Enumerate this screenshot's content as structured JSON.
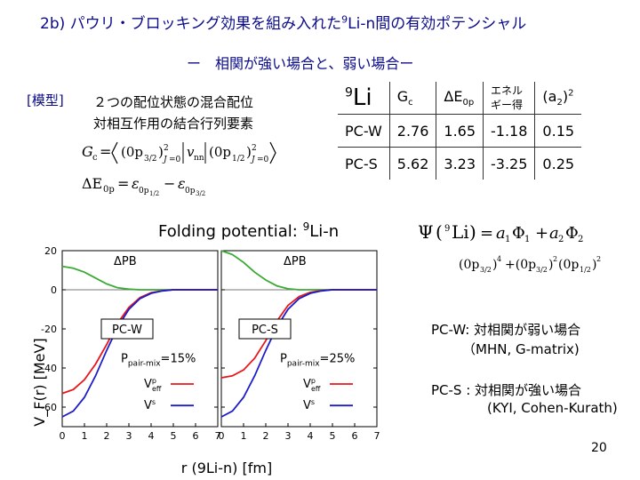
{
  "slide": {
    "title_prefix": "2b) パウリ・ブロッキング効果を組み入れた",
    "title_sup": "9",
    "title_suffix": "Li-n間の有効ポテンシャル",
    "subtitle": "ー　相関が強い場合と、弱い場合ー",
    "model_label": "[模型]",
    "mix_line1": "２つの配位状態の混合配位",
    "mix_line2": "対相互作用の結合行列要素",
    "page_number": "20"
  },
  "table": {
    "header": {
      "nucleus_sup": "9",
      "nucleus": "Li",
      "gc": "G",
      "gc_sub": "c",
      "de": "ΔE",
      "de_sub": "0p",
      "gain_line1": "エネル",
      "gain_line2": "ギー得",
      "a2": "(a",
      "a2_sub": "2",
      "a2_tail": ")",
      "a2_sup": "2"
    },
    "rows": [
      {
        "name": "PC-W",
        "gc": "2.76",
        "de": "1.65",
        "gain": "-1.18",
        "a2": "0.15"
      },
      {
        "name": "PC-S",
        "gc": "5.62",
        "de": "3.23",
        "gain": "-3.25",
        "a2": "0.25"
      }
    ]
  },
  "notes": {
    "pcw_line1": "PC-W: 対相関が弱い場合",
    "pcw_line2": "（MHN, G-matrix)",
    "pcs_line1": "PC-S : 対相関が強い場合",
    "pcs_line2": "(KYI, Cohen-Kurath)"
  },
  "chart_data": {
    "type": "line",
    "title_prefix": "Folding potential: ",
    "title_sup": "9",
    "title_suffix": "Li-n",
    "ylabel": "V_F(r) [MeV]",
    "xlabel": "r (9Li-n) [fm]",
    "xlim": [
      0,
      7
    ],
    "ylim": [
      -70,
      20
    ],
    "yticks": [
      20,
      0,
      -20,
      -40,
      -60
    ],
    "xticks": [
      0,
      1,
      2,
      3,
      4,
      5,
      6,
      7
    ],
    "colors": {
      "dpb": "#3aaa35",
      "veff": "#e8161c",
      "vs": "#1c1cc8"
    },
    "panels": [
      {
        "name": "PC-W",
        "pair_mix": "P_pair-mix=15%",
        "pair_mix_label": "pair-mix",
        "pair_mix_value": "=15%",
        "series": [
          {
            "name": "ΔPB",
            "x": [
              0,
              0.5,
              1,
              1.5,
              2,
              2.5,
              3,
              3.5,
              4,
              5,
              6,
              7
            ],
            "y": [
              12,
              11,
              9,
              6,
              3,
              1,
              0.3,
              0,
              0,
              0,
              0,
              0
            ]
          },
          {
            "name": "Veff",
            "x": [
              0,
              0.5,
              1,
              1.5,
              2,
              2.5,
              3,
              3.5,
              4,
              4.5,
              5,
              6,
              7
            ],
            "y": [
              -53,
              -51,
              -46,
              -38,
              -28,
              -17,
              -9,
              -4,
              -1.5,
              -0.5,
              0,
              0,
              0
            ]
          },
          {
            "name": "Vs",
            "x": [
              0,
              0.5,
              1,
              1.5,
              2,
              2.5,
              3,
              3.5,
              4,
              4.5,
              5,
              6,
              7
            ],
            "y": [
              -65,
              -62,
              -55,
              -44,
              -31,
              -19,
              -10,
              -4.5,
              -1.8,
              -0.6,
              0,
              0,
              0
            ]
          }
        ]
      },
      {
        "name": "PC-S",
        "pair_mix": "P_pair-mix=25%",
        "pair_mix_label": "pair-mix",
        "pair_mix_value": "=25%",
        "series": [
          {
            "name": "ΔPB",
            "x": [
              0,
              0.5,
              1,
              1.5,
              2,
              2.5,
              3,
              3.5,
              4,
              5,
              6,
              7
            ],
            "y": [
              20,
              18,
              14,
              9,
              5,
              2,
              0.5,
              0,
              0,
              0,
              0,
              0
            ]
          },
          {
            "name": "Veff",
            "x": [
              0,
              0.5,
              1,
              1.5,
              2,
              2.5,
              3,
              3.5,
              4,
              4.5,
              5,
              6,
              7
            ],
            "y": [
              -45,
              -44,
              -41,
              -35,
              -26,
              -16,
              -8,
              -3.5,
              -1.3,
              -0.4,
              0,
              0,
              0
            ]
          },
          {
            "name": "Vs",
            "x": [
              0,
              0.5,
              1,
              1.5,
              2,
              2.5,
              3,
              3.5,
              4,
              4.5,
              5,
              6,
              7
            ],
            "y": [
              -65,
              -62,
              -55,
              -44,
              -31,
              -19,
              -10,
              -4.5,
              -1.8,
              -0.6,
              0,
              0,
              0
            ]
          }
        ]
      }
    ]
  }
}
